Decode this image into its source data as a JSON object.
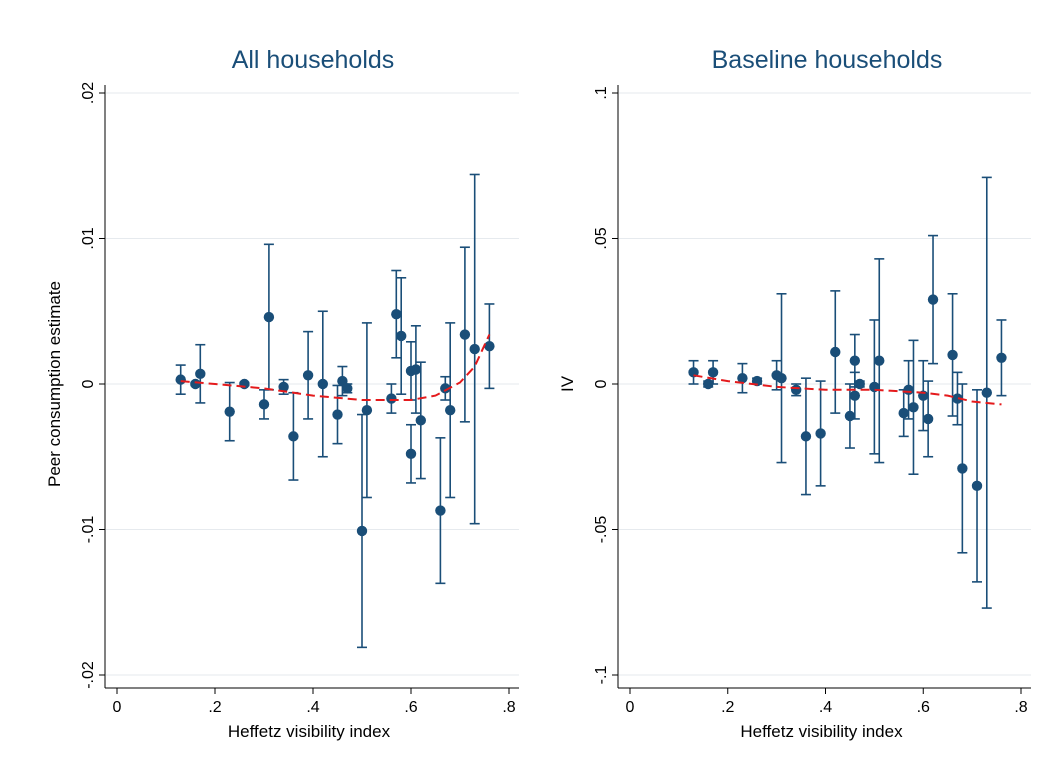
{
  "chart_data": [
    {
      "type": "scatter",
      "title": "All households",
      "xlabel": "Heffetz visibility index",
      "ylabel": "Peer consumption estimate",
      "xlim": [
        0,
        0.8
      ],
      "ylim": [
        -0.02,
        0.02
      ],
      "x_ticks": [
        0,
        0.2,
        0.4,
        0.6,
        0.8
      ],
      "x_tick_labels": [
        "0",
        ".2",
        ".4",
        ".6",
        ".8"
      ],
      "y_ticks": [
        -0.02,
        -0.01,
        0,
        0.01,
        0.02
      ],
      "y_tick_labels": [
        "-.02",
        "-.01",
        "0",
        ".01",
        ".02"
      ],
      "grid": "horizontal",
      "legend": "none",
      "colors": {
        "points": "#1a4e78",
        "fit": "#e41a1c",
        "grid": "#e6eaee"
      },
      "series": [
        {
          "type": "point-with-ci",
          "points": [
            {
              "x": 0.13,
              "y": 0.0003,
              "lo": -0.0007,
              "hi": 0.0013
            },
            {
              "x": 0.16,
              "y": 0.0,
              "lo": -0.0001,
              "hi": 0.0001
            },
            {
              "x": 0.17,
              "y": 0.0007,
              "lo": -0.0013,
              "hi": 0.0027
            },
            {
              "x": 0.23,
              "y": -0.0019,
              "lo": -0.0039,
              "hi": 0.0001
            },
            {
              "x": 0.26,
              "y": 0.0,
              "lo": -0.0001,
              "hi": 0.0001
            },
            {
              "x": 0.3,
              "y": -0.0014,
              "lo": -0.0024,
              "hi": -0.0004
            },
            {
              "x": 0.31,
              "y": 0.0046,
              "lo": -0.0004,
              "hi": 0.0096
            },
            {
              "x": 0.34,
              "y": -0.0002,
              "lo": -0.0007,
              "hi": 0.0003
            },
            {
              "x": 0.36,
              "y": -0.0036,
              "lo": -0.0066,
              "hi": -0.0006
            },
            {
              "x": 0.39,
              "y": 0.0006,
              "lo": -0.0024,
              "hi": 0.0036
            },
            {
              "x": 0.42,
              "y": 0.0,
              "lo": -0.005,
              "hi": 0.005
            },
            {
              "x": 0.45,
              "y": -0.0021,
              "lo": -0.0041,
              "hi": -0.0001
            },
            {
              "x": 0.46,
              "y": 0.0002,
              "lo": -0.0008,
              "hi": 0.0012
            },
            {
              "x": 0.47,
              "y": -0.0003,
              "lo": -0.0006,
              "hi": 0.0
            },
            {
              "x": 0.5,
              "y": -0.0101,
              "lo": -0.0181,
              "hi": -0.0021
            },
            {
              "x": 0.51,
              "y": -0.0018,
              "lo": -0.0078,
              "hi": 0.0042
            },
            {
              "x": 0.56,
              "y": -0.001,
              "lo": -0.002,
              "hi": 0.0
            },
            {
              "x": 0.57,
              "y": 0.0048,
              "lo": 0.0018,
              "hi": 0.0078
            },
            {
              "x": 0.58,
              "y": 0.0033,
              "lo": -0.0007,
              "hi": 0.0073
            },
            {
              "x": 0.6,
              "y": 0.0009,
              "lo": -0.0011,
              "hi": 0.0029
            },
            {
              "x": 0.6,
              "y": -0.0048,
              "lo": -0.0068,
              "hi": -0.0028
            },
            {
              "x": 0.61,
              "y": 0.001,
              "lo": -0.002,
              "hi": 0.004
            },
            {
              "x": 0.62,
              "y": -0.0025,
              "lo": -0.0065,
              "hi": 0.0015
            },
            {
              "x": 0.66,
              "y": -0.0087,
              "lo": -0.0137,
              "hi": -0.0037
            },
            {
              "x": 0.67,
              "y": -0.0003,
              "lo": -0.0011,
              "hi": 0.0005
            },
            {
              "x": 0.68,
              "y": -0.0018,
              "lo": -0.0078,
              "hi": 0.0042
            },
            {
              "x": 0.71,
              "y": 0.0034,
              "lo": -0.0026,
              "hi": 0.0094
            },
            {
              "x": 0.73,
              "y": 0.0024,
              "lo": -0.0096,
              "hi": 0.0144
            },
            {
              "x": 0.76,
              "y": 0.0026,
              "lo": -0.0003,
              "hi": 0.0055
            }
          ]
        },
        {
          "type": "fit-line",
          "style": "dashed",
          "x": [
            0.13,
            0.2,
            0.3,
            0.4,
            0.5,
            0.6,
            0.65,
            0.7,
            0.73,
            0.76
          ],
          "y": [
            0.0002,
            0.0,
            -0.0003,
            -0.0008,
            -0.0011,
            -0.0011,
            -0.0008,
            0.0001,
            0.0012,
            0.0034
          ]
        }
      ]
    },
    {
      "type": "scatter",
      "title": "Baseline households",
      "xlabel": "Heffetz visibility index",
      "ylabel": "IV",
      "xlim": [
        0,
        0.8
      ],
      "ylim": [
        -0.1,
        0.1
      ],
      "x_ticks": [
        0,
        0.2,
        0.4,
        0.6,
        0.8
      ],
      "x_tick_labels": [
        "0",
        ".2",
        ".4",
        ".6",
        ".8"
      ],
      "y_ticks": [
        -0.1,
        -0.05,
        0,
        0.05,
        0.1
      ],
      "y_tick_labels": [
        "-.1",
        "-.05",
        "0",
        ".05",
        ".1"
      ],
      "grid": "horizontal",
      "legend": "none",
      "colors": {
        "points": "#1a4e78",
        "fit": "#e41a1c",
        "grid": "#e6eaee"
      },
      "series": [
        {
          "type": "point-with-ci",
          "points": [
            {
              "x": 0.13,
              "y": 0.004,
              "lo": 0.0,
              "hi": 0.008
            },
            {
              "x": 0.16,
              "y": 0.0,
              "lo": -0.001,
              "hi": 0.001
            },
            {
              "x": 0.17,
              "y": 0.004,
              "lo": 0.0,
              "hi": 0.008
            },
            {
              "x": 0.23,
              "y": 0.002,
              "lo": -0.003,
              "hi": 0.007
            },
            {
              "x": 0.26,
              "y": 0.001,
              "lo": 0.0,
              "hi": 0.002
            },
            {
              "x": 0.3,
              "y": 0.003,
              "lo": -0.002,
              "hi": 0.008
            },
            {
              "x": 0.31,
              "y": 0.002,
              "lo": -0.027,
              "hi": 0.031
            },
            {
              "x": 0.34,
              "y": -0.002,
              "lo": -0.004,
              "hi": 0.0
            },
            {
              "x": 0.36,
              "y": -0.018,
              "lo": -0.038,
              "hi": 0.002
            },
            {
              "x": 0.39,
              "y": -0.017,
              "lo": -0.035,
              "hi": 0.001
            },
            {
              "x": 0.42,
              "y": 0.011,
              "lo": -0.01,
              "hi": 0.032
            },
            {
              "x": 0.45,
              "y": -0.011,
              "lo": -0.022,
              "hi": 0.0
            },
            {
              "x": 0.46,
              "y": 0.008,
              "lo": -0.001,
              "hi": 0.017
            },
            {
              "x": 0.46,
              "y": -0.004,
              "lo": -0.012,
              "hi": 0.004
            },
            {
              "x": 0.47,
              "y": 0.0,
              "lo": -0.001,
              "hi": 0.001
            },
            {
              "x": 0.5,
              "y": -0.001,
              "lo": -0.024,
              "hi": 0.022
            },
            {
              "x": 0.51,
              "y": 0.008,
              "lo": -0.027,
              "hi": 0.043
            },
            {
              "x": 0.56,
              "y": -0.01,
              "lo": -0.018,
              "hi": -0.002
            },
            {
              "x": 0.57,
              "y": -0.002,
              "lo": -0.012,
              "hi": 0.008
            },
            {
              "x": 0.58,
              "y": -0.008,
              "lo": -0.031,
              "hi": 0.015
            },
            {
              "x": 0.6,
              "y": -0.004,
              "lo": -0.016,
              "hi": 0.008
            },
            {
              "x": 0.61,
              "y": -0.012,
              "lo": -0.025,
              "hi": 0.001
            },
            {
              "x": 0.62,
              "y": 0.029,
              "lo": 0.007,
              "hi": 0.051
            },
            {
              "x": 0.66,
              "y": 0.01,
              "lo": -0.011,
              "hi": 0.031
            },
            {
              "x": 0.67,
              "y": -0.005,
              "lo": -0.014,
              "hi": 0.004
            },
            {
              "x": 0.68,
              "y": -0.029,
              "lo": -0.058,
              "hi": 0.0
            },
            {
              "x": 0.71,
              "y": -0.035,
              "lo": -0.068,
              "hi": -0.002
            },
            {
              "x": 0.73,
              "y": -0.003,
              "lo": -0.077,
              "hi": 0.071
            },
            {
              "x": 0.76,
              "y": 0.009,
              "lo": -0.004,
              "hi": 0.022
            }
          ]
        },
        {
          "type": "fit-line",
          "style": "dashed",
          "x": [
            0.13,
            0.2,
            0.3,
            0.4,
            0.5,
            0.6,
            0.65,
            0.7,
            0.76
          ],
          "y": [
            0.003,
            0.001,
            -0.001,
            -0.002,
            -0.002,
            -0.003,
            -0.004,
            -0.006,
            -0.007
          ]
        }
      ]
    }
  ]
}
